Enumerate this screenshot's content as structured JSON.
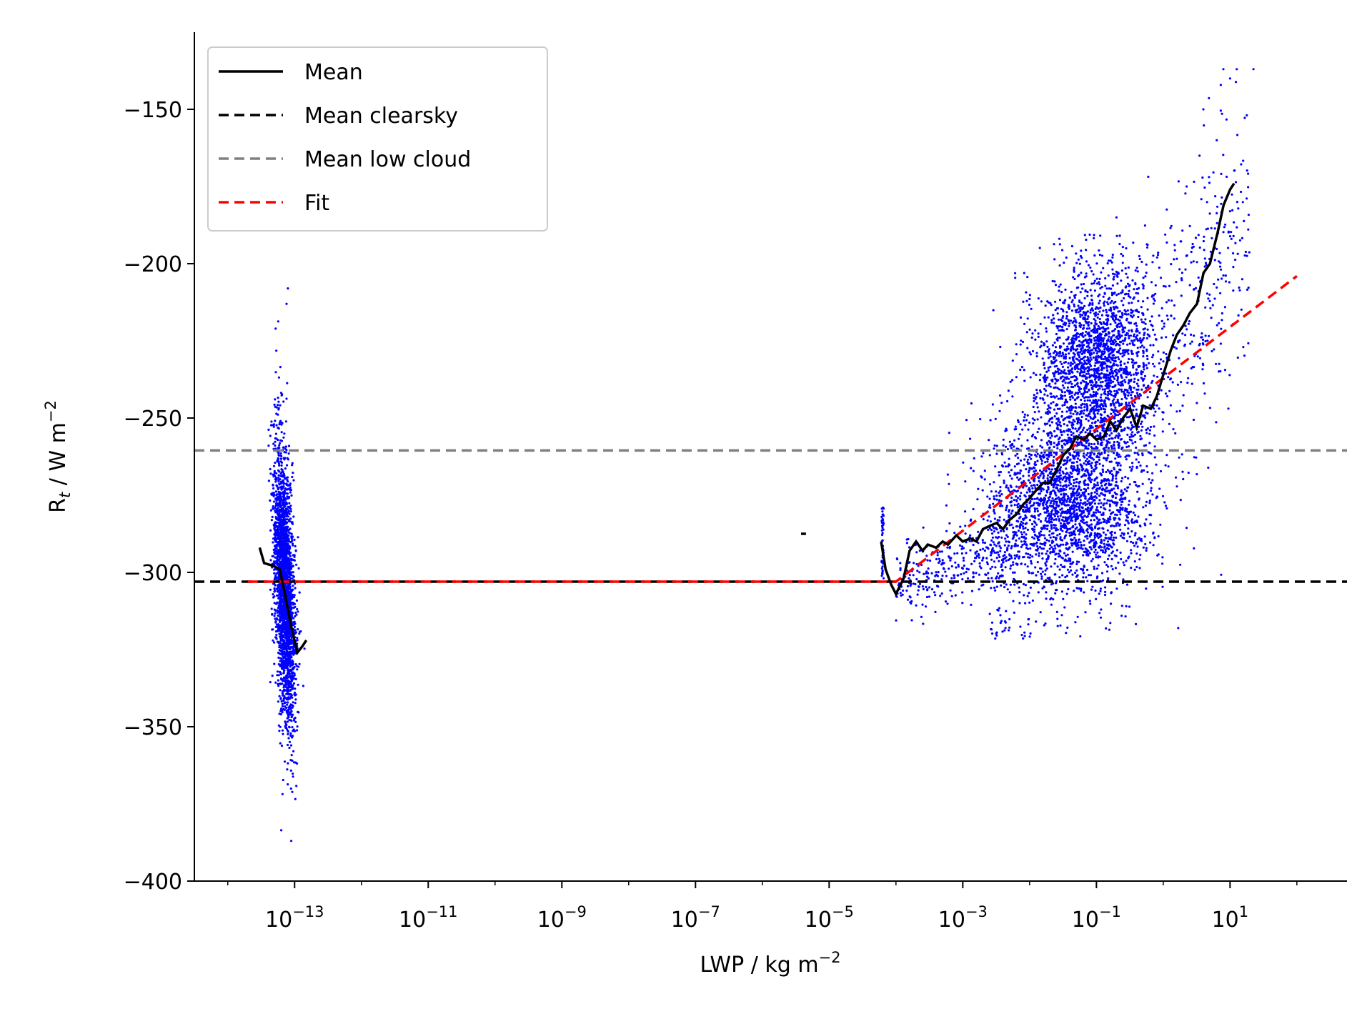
{
  "chart_data": {
    "type": "scatter",
    "title": "",
    "xlabel": "LWP / kg m",
    "xlabel_sup": "−2",
    "ylabel": "R",
    "ylabel_sub": "t",
    "ylabel_rest": " / W m",
    "ylabel_sup": "−2",
    "xscale": "log",
    "xlim_log10": [
      -14.5,
      2.75
    ],
    "ylim": [
      -400,
      -125
    ],
    "x_ticks": [
      {
        "exp": -13,
        "base": "10",
        "sup": "−13"
      },
      {
        "exp": -11,
        "base": "10",
        "sup": "−11"
      },
      {
        "exp": -9,
        "base": "10",
        "sup": "−9"
      },
      {
        "exp": -7,
        "base": "10",
        "sup": "−7"
      },
      {
        "exp": -5,
        "base": "10",
        "sup": "−5"
      },
      {
        "exp": -3,
        "base": "10",
        "sup": "−3"
      },
      {
        "exp": -1,
        "base": "10",
        "sup": "−1"
      },
      {
        "exp": 1,
        "base": "10",
        "sup": "1"
      }
    ],
    "y_ticks": [
      {
        "value": -150,
        "label": "−150"
      },
      {
        "value": -200,
        "label": "−200"
      },
      {
        "value": -250,
        "label": "−250"
      },
      {
        "value": -300,
        "label": "−300"
      },
      {
        "value": -350,
        "label": "−350"
      },
      {
        "value": -400,
        "label": "−400"
      }
    ],
    "grid": false,
    "legend_position": "top-left",
    "legend": [
      {
        "label": "Mean",
        "color": "#000000",
        "style": "solid"
      },
      {
        "label": "Mean clearsky",
        "color": "#000000",
        "style": "dashed"
      },
      {
        "label": "Mean low cloud",
        "color": "#808080",
        "style": "dashed"
      },
      {
        "label": "Fit",
        "color": "#ff0000",
        "style": "dashed"
      }
    ],
    "scatter_color": "#0000ff",
    "mean_clearsky": -303,
    "mean_low_cloud": -260.5,
    "mean_line": [
      {
        "x": 3e-14,
        "y": -292
      },
      {
        "x": 3.5e-14,
        "y": -297
      },
      {
        "x": 5e-14,
        "y": -298
      },
      {
        "x": 6e-14,
        "y": -299
      },
      {
        "x": 7e-14,
        "y": -306
      },
      {
        "x": 9e-14,
        "y": -318
      },
      {
        "x": 1.1e-13,
        "y": -326
      },
      {
        "x": 1.3e-13,
        "y": -324
      },
      {
        "x": 1.5e-13,
        "y": -322
      }
    ],
    "mean_line_isolated": [
      {
        "x": 3.8e-06,
        "y": -287.5
      },
      {
        "x": 4.5e-06,
        "y": -287.5
      }
    ],
    "mean_line_cloud": [
      {
        "x": 6e-05,
        "y": -290
      },
      {
        "x": 7e-05,
        "y": -299
      },
      {
        "x": 8.5e-05,
        "y": -304
      },
      {
        "x": 0.0001,
        "y": -307
      },
      {
        "x": 0.00013,
        "y": -302
      },
      {
        "x": 0.00016,
        "y": -293
      },
      {
        "x": 0.0002,
        "y": -290
      },
      {
        "x": 0.00025,
        "y": -293
      },
      {
        "x": 0.0003,
        "y": -291
      },
      {
        "x": 0.0004,
        "y": -292
      },
      {
        "x": 0.0005,
        "y": -290
      },
      {
        "x": 0.0006,
        "y": -291
      },
      {
        "x": 0.0008,
        "y": -288
      },
      {
        "x": 0.001,
        "y": -290
      },
      {
        "x": 0.0013,
        "y": -289
      },
      {
        "x": 0.0016,
        "y": -290
      },
      {
        "x": 0.002,
        "y": -286
      },
      {
        "x": 0.0025,
        "y": -285
      },
      {
        "x": 0.0032,
        "y": -284
      },
      {
        "x": 0.004,
        "y": -286
      },
      {
        "x": 0.005,
        "y": -283
      },
      {
        "x": 0.0065,
        "y": -281
      },
      {
        "x": 0.008,
        "y": -278
      },
      {
        "x": 0.01,
        "y": -276
      },
      {
        "x": 0.013,
        "y": -273
      },
      {
        "x": 0.016,
        "y": -271
      },
      {
        "x": 0.02,
        "y": -271
      },
      {
        "x": 0.025,
        "y": -267
      },
      {
        "x": 0.032,
        "y": -262
      },
      {
        "x": 0.04,
        "y": -260
      },
      {
        "x": 0.05,
        "y": -256
      },
      {
        "x": 0.065,
        "y": -257
      },
      {
        "x": 0.08,
        "y": -255
      },
      {
        "x": 0.1,
        "y": -257
      },
      {
        "x": 0.13,
        "y": -256
      },
      {
        "x": 0.16,
        "y": -251
      },
      {
        "x": 0.2,
        "y": -254
      },
      {
        "x": 0.25,
        "y": -250
      },
      {
        "x": 0.32,
        "y": -247
      },
      {
        "x": 0.4,
        "y": -253
      },
      {
        "x": 0.5,
        "y": -246
      },
      {
        "x": 0.65,
        "y": -247
      },
      {
        "x": 0.8,
        "y": -243
      },
      {
        "x": 1,
        "y": -236
      },
      {
        "x": 1.3,
        "y": -228
      },
      {
        "x": 1.6,
        "y": -223
      },
      {
        "x": 2,
        "y": -220
      },
      {
        "x": 2.5,
        "y": -216
      },
      {
        "x": 3.2,
        "y": -213
      },
      {
        "x": 4,
        "y": -203
      },
      {
        "x": 5,
        "y": -200
      },
      {
        "x": 6.5,
        "y": -190
      },
      {
        "x": 8,
        "y": -181
      },
      {
        "x": 10,
        "y": -176
      },
      {
        "x": 11.5,
        "y": -174
      }
    ],
    "fit_line": [
      {
        "x": 2e-14,
        "y": -303
      },
      {
        "x": 0.0001,
        "y": -303
      },
      {
        "x": 100,
        "y": -204
      }
    ],
    "scatter_clusters": [
      {
        "note": "clearsky",
        "x_log10_center": -13.15,
        "x_log10_spread": 0.13,
        "y_min": -388,
        "y_max": -208,
        "y_mean": -305,
        "y_sd": 22,
        "count": 2600
      },
      {
        "note": "cloudy",
        "x_log10_range": [
          -4.3,
          1.4
        ],
        "y_min": -322,
        "y_max": -137,
        "count": 5200
      }
    ]
  }
}
